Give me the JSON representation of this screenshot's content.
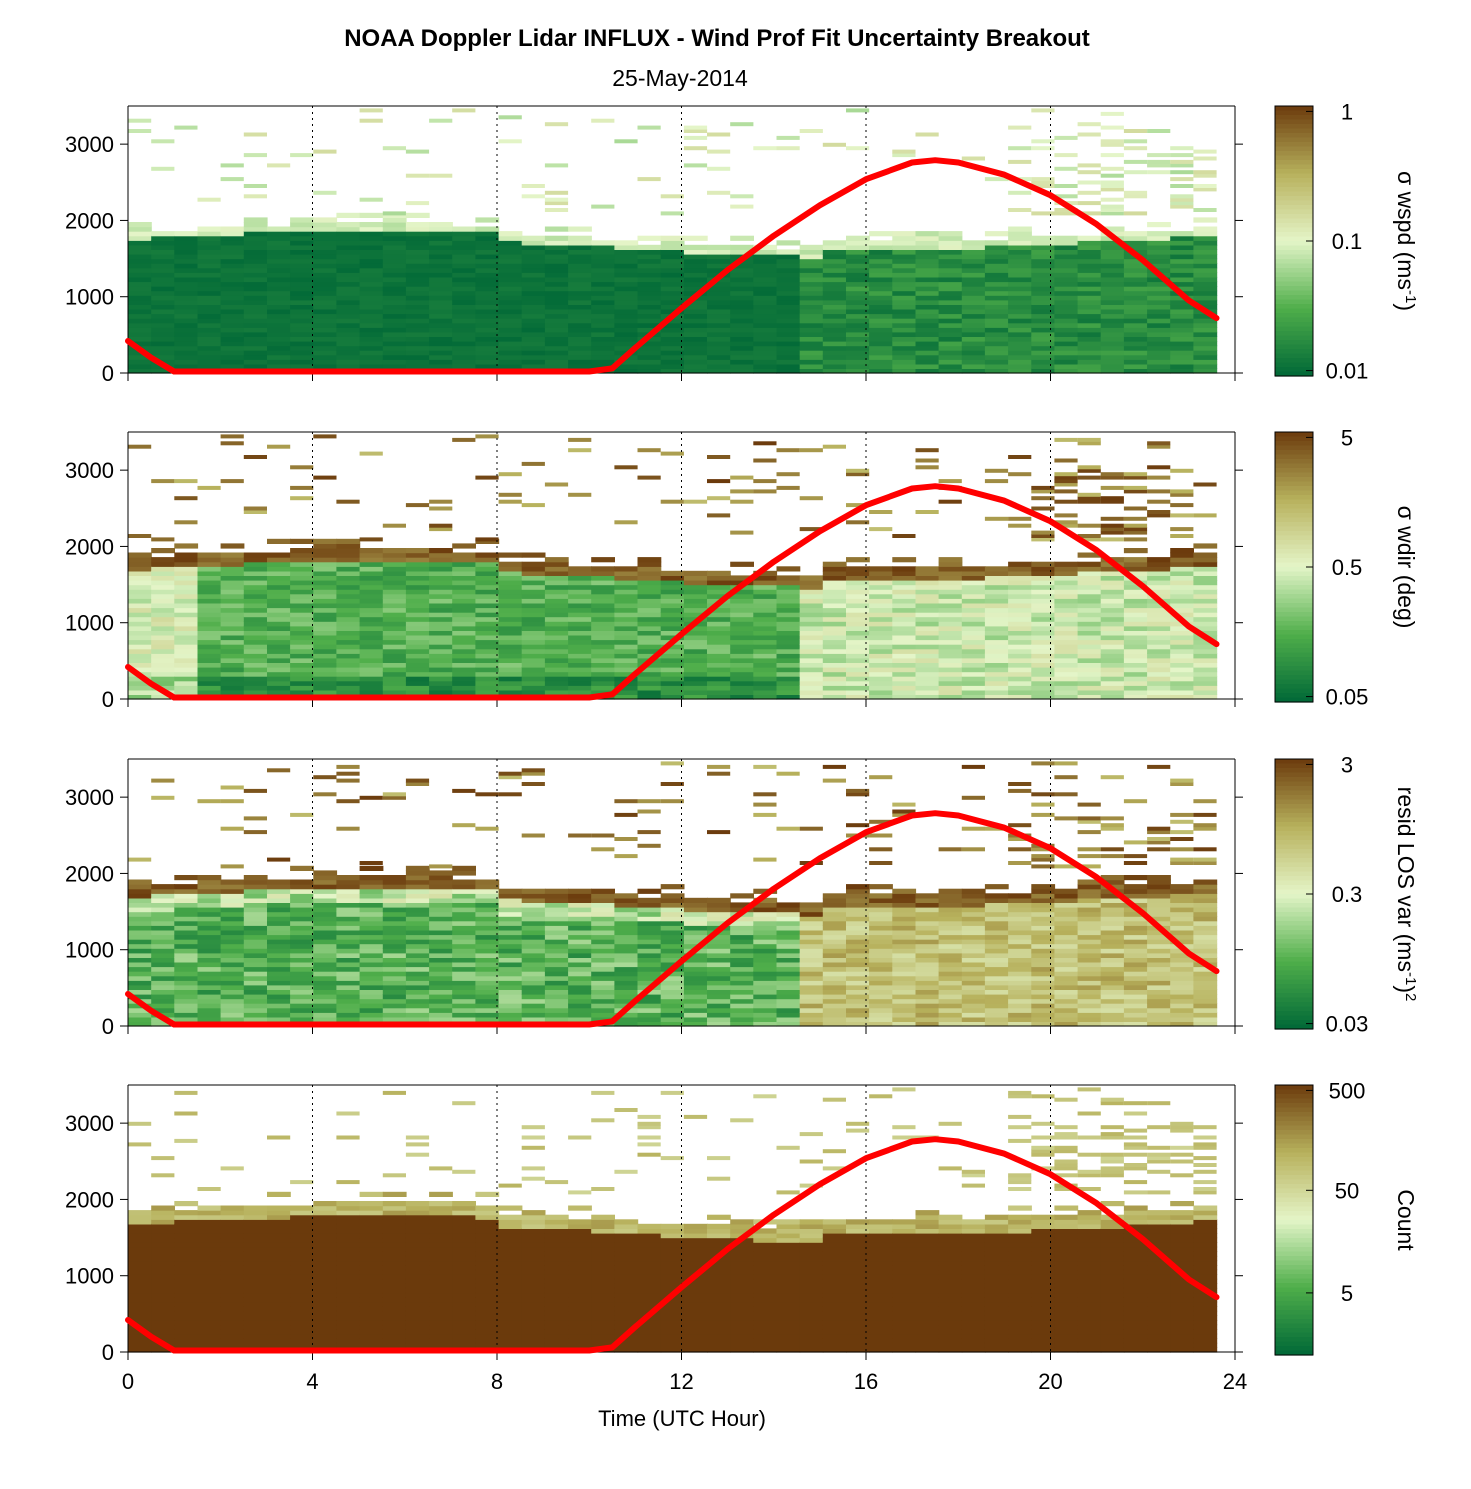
{
  "chart_data": {
    "type": "heatmap",
    "title": "NOAA Doppler Lidar INFLUX - Wind Prof Fit Uncertainty Breakout",
    "subtitle": "25-May-2014",
    "xlabel": "Time (UTC Hour)",
    "xlim": [
      0,
      24
    ],
    "xticks": [
      "0",
      "4",
      "8",
      "12",
      "16",
      "20",
      "24"
    ],
    "ylim": [
      0,
      3500
    ],
    "yticks": [
      "0",
      "1000",
      "2000",
      "3000"
    ],
    "grid": "dotted vertical lines at 4-hour intervals",
    "colormap": [
      "#006837",
      "#4fae4a",
      "#e4f5c8",
      "#b7b15c",
      "#6b3a0c"
    ],
    "overlay": {
      "name": "",
      "color": "#ff0000",
      "x": [
        0,
        0.5,
        1,
        2,
        4,
        6,
        8,
        10,
        10.5,
        11,
        12,
        13,
        14,
        15,
        16,
        17,
        17.5,
        18,
        19,
        20,
        21,
        22,
        23,
        23.6
      ],
      "y": [
        420,
        200,
        20,
        20,
        20,
        20,
        20,
        20,
        60,
        330,
        850,
        1350,
        1800,
        2200,
        2540,
        2760,
        2790,
        2760,
        2600,
        2330,
        1950,
        1480,
        950,
        720
      ]
    },
    "panels": [
      {
        "colorbar_label_main": "σ wspd (ms",
        "colorbar_label_sup": "-1",
        "colorbar_label_end": ")",
        "colorbar_ticks": [
          "1",
          "0.1",
          "0.01"
        ],
        "colorbar_scale": "log",
        "clim": [
          0.01,
          1
        ]
      },
      {
        "colorbar_label_main": "σ wdir (deg)",
        "colorbar_label_sup": "",
        "colorbar_label_end": "",
        "colorbar_ticks": [
          "5",
          "0.5",
          "0.05"
        ],
        "colorbar_scale": "log",
        "clim": [
          0.05,
          5
        ]
      },
      {
        "colorbar_label_main": "resid LOS var (ms",
        "colorbar_label_sup": "-1",
        "colorbar_label_end": ")",
        "colorbar_label_sup2": "2",
        "colorbar_ticks": [
          "3",
          "0.3",
          "0.03"
        ],
        "colorbar_scale": "log",
        "clim": [
          0.03,
          3
        ]
      },
      {
        "colorbar_label_main": "Count",
        "colorbar_label_sup": "",
        "colorbar_label_end": "",
        "colorbar_ticks": [
          "500",
          "50",
          "5"
        ],
        "colorbar_scale": "log",
        "clim": [
          1,
          500
        ]
      }
    ]
  }
}
